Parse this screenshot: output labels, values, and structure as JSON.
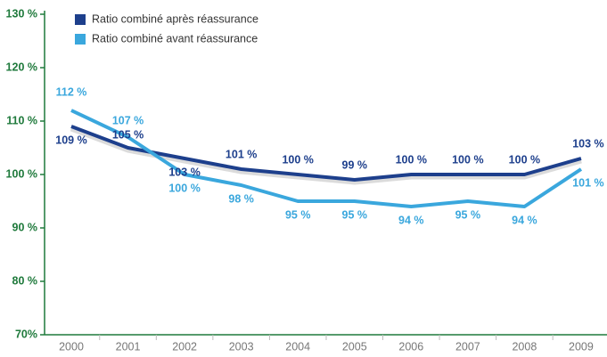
{
  "chart_data": {
    "type": "line",
    "categories": [
      "2000",
      "2001",
      "2002",
      "2003",
      "2004",
      "2005",
      "2006",
      "2007",
      "2008",
      "2009"
    ],
    "series": [
      {
        "name": "Ratio combiné après réassurance",
        "color": "#1d3f8c",
        "values": [
          109,
          105,
          103,
          101,
          100,
          99,
          100,
          100,
          100,
          103
        ],
        "value_labels": [
          "109 %",
          "105 %",
          "103 %",
          "101 %",
          "100 %",
          "99 %",
          "100 %",
          "100 %",
          "100 %",
          "103 %"
        ]
      },
      {
        "name": "Ratio combiné avant réassurance",
        "color": "#3aa7dd",
        "values": [
          112,
          107,
          100,
          98,
          95,
          95,
          94,
          95,
          94,
          101
        ],
        "value_labels": [
          "112 %",
          "107 %",
          "100 %",
          "98 %",
          "95 %",
          "95 %",
          "94 %",
          "95 %",
          "94 %",
          "101 %"
        ]
      }
    ],
    "ylim": [
      70,
      130
    ],
    "yticks": [
      {
        "value": 70,
        "label": "70%"
      },
      {
        "value": 80,
        "label": "80 %"
      },
      {
        "value": 90,
        "label": "90 %"
      },
      {
        "value": 100,
        "label": "100 %"
      },
      {
        "value": 110,
        "label": "110 %"
      },
      {
        "value": 120,
        "label": "120 %"
      },
      {
        "value": 130,
        "label": "130 %"
      }
    ],
    "legend": "top-left",
    "grid": false
  }
}
